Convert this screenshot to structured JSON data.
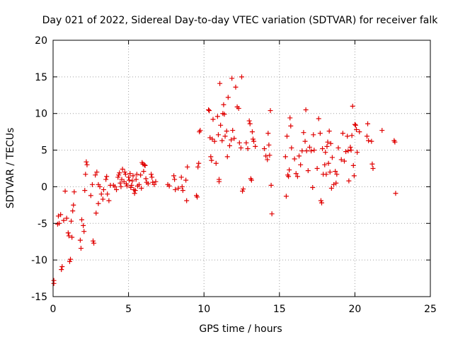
{
  "chart_data": {
    "type": "scatter",
    "title": "Day 021 of 2022, Sidereal Day-to-day VTEC variation (SDTVAR) for receiver falk",
    "xlabel": "GPS time / hours",
    "ylabel": "SDTVAR / TECUs",
    "xlim": [
      0,
      25
    ],
    "ylim": [
      -15,
      20
    ],
    "xticks": [
      0,
      5,
      10,
      15,
      20,
      25
    ],
    "yticks": [
      -15,
      -10,
      -5,
      0,
      5,
      10,
      15,
      20
    ],
    "grid": true,
    "marker": "plus",
    "color": "#e00000",
    "series": [
      {
        "name": "SDTVAR",
        "points": [
          [
            0.05,
            -12.8
          ],
          [
            0.05,
            -13.2
          ],
          [
            0.3,
            -5.1
          ],
          [
            0.35,
            -4.0
          ],
          [
            0.4,
            -5.0
          ],
          [
            0.5,
            -3.8
          ],
          [
            0.55,
            -11.3
          ],
          [
            0.6,
            -10.9
          ],
          [
            0.7,
            -4.6
          ],
          [
            0.8,
            -0.6
          ],
          [
            0.9,
            -4.3
          ],
          [
            1.0,
            -6.3
          ],
          [
            1.05,
            -6.7
          ],
          [
            1.1,
            -10.2
          ],
          [
            1.15,
            -9.9
          ],
          [
            1.2,
            -4.7
          ],
          [
            1.25,
            -6.9
          ],
          [
            1.3,
            -3.3
          ],
          [
            1.35,
            -2.5
          ],
          [
            1.4,
            -0.7
          ],
          [
            1.8,
            -7.3
          ],
          [
            1.85,
            -8.4
          ],
          [
            1.9,
            -4.5
          ],
          [
            2.0,
            -5.3
          ],
          [
            2.05,
            -6.1
          ],
          [
            2.1,
            -0.5
          ],
          [
            2.15,
            1.7
          ],
          [
            2.2,
            3.4
          ],
          [
            2.25,
            3.0
          ],
          [
            2.5,
            -1.2
          ],
          [
            2.6,
            0.3
          ],
          [
            2.65,
            -7.4
          ],
          [
            2.7,
            -7.7
          ],
          [
            2.8,
            1.6
          ],
          [
            2.85,
            -3.6
          ],
          [
            2.9,
            2.0
          ],
          [
            3.0,
            -2.3
          ],
          [
            3.0,
            0.3
          ],
          [
            3.1,
            0.0
          ],
          [
            3.2,
            -1.0
          ],
          [
            3.3,
            -1.7
          ],
          [
            3.35,
            -0.4
          ],
          [
            3.5,
            1.0
          ],
          [
            3.55,
            1.4
          ],
          [
            3.6,
            -1.0
          ],
          [
            3.7,
            -1.9
          ],
          [
            3.8,
            0.2
          ],
          [
            4.0,
            0.2
          ],
          [
            4.1,
            0.0
          ],
          [
            4.2,
            -0.4
          ],
          [
            4.3,
            1.3
          ],
          [
            4.35,
            1.6
          ],
          [
            4.4,
            1.9
          ],
          [
            4.45,
            0.5
          ],
          [
            4.5,
            0.0
          ],
          [
            4.55,
            1.0
          ],
          [
            4.6,
            2.4
          ],
          [
            4.7,
            0.7
          ],
          [
            4.75,
            2.0
          ],
          [
            4.8,
            1.7
          ],
          [
            4.85,
            0.4
          ],
          [
            4.9,
            0.1
          ],
          [
            5.0,
            1.3
          ],
          [
            5.05,
            0.9
          ],
          [
            5.1,
            1.8
          ],
          [
            5.15,
            -0.1
          ],
          [
            5.2,
            0.2
          ],
          [
            5.25,
            0.8
          ],
          [
            5.3,
            1.5
          ],
          [
            5.35,
            -0.4
          ],
          [
            5.4,
            -0.9
          ],
          [
            5.45,
            -0.5
          ],
          [
            5.5,
            1.0
          ],
          [
            5.55,
            1.7
          ],
          [
            5.6,
            0.1
          ],
          [
            5.7,
            0.3
          ],
          [
            5.8,
            1.6
          ],
          [
            5.85,
            -0.2
          ],
          [
            5.9,
            3.3
          ],
          [
            5.95,
            3.1
          ],
          [
            6.0,
            2.1
          ],
          [
            6.05,
            3.0
          ],
          [
            6.1,
            2.9
          ],
          [
            6.15,
            1.1
          ],
          [
            6.2,
            0.6
          ],
          [
            6.3,
            0.4
          ],
          [
            6.5,
            1.7
          ],
          [
            6.55,
            1.3
          ],
          [
            6.6,
            0.6
          ],
          [
            6.7,
            0.3
          ],
          [
            6.8,
            0.7
          ],
          [
            7.6,
            0.3
          ],
          [
            7.7,
            0.1
          ],
          [
            8.0,
            1.5
          ],
          [
            8.05,
            1.0
          ],
          [
            8.1,
            -0.4
          ],
          [
            8.3,
            -0.2
          ],
          [
            8.5,
            1.3
          ],
          [
            8.55,
            0.0
          ],
          [
            8.6,
            -0.5
          ],
          [
            8.8,
            0.9
          ],
          [
            8.85,
            -1.9
          ],
          [
            8.9,
            2.7
          ],
          [
            9.5,
            -1.2
          ],
          [
            9.55,
            -1.4
          ],
          [
            9.6,
            2.7
          ],
          [
            9.65,
            3.2
          ],
          [
            9.7,
            7.5
          ],
          [
            9.75,
            7.7
          ],
          [
            10.3,
            10.5
          ],
          [
            10.35,
            10.4
          ],
          [
            10.4,
            6.7
          ],
          [
            10.45,
            4.1
          ],
          [
            10.5,
            3.6
          ],
          [
            10.55,
            6.5
          ],
          [
            10.6,
            9.2
          ],
          [
            10.7,
            6.2
          ],
          [
            10.8,
            3.2
          ],
          [
            10.9,
            9.6
          ],
          [
            10.95,
            7.1
          ],
          [
            11.0,
            1.0
          ],
          [
            11.0,
            0.7
          ],
          [
            11.05,
            14.1
          ],
          [
            11.1,
            8.4
          ],
          [
            11.2,
            6.3
          ],
          [
            11.25,
            10.0
          ],
          [
            11.3,
            11.2
          ],
          [
            11.35,
            9.9
          ],
          [
            11.4,
            6.9
          ],
          [
            11.5,
            7.6
          ],
          [
            11.55,
            4.1
          ],
          [
            11.6,
            12.2
          ],
          [
            11.7,
            5.6
          ],
          [
            11.8,
            6.4
          ],
          [
            11.85,
            14.8
          ],
          [
            11.9,
            7.7
          ],
          [
            12.0,
            6.6
          ],
          [
            12.1,
            13.6
          ],
          [
            12.2,
            10.9
          ],
          [
            12.3,
            10.7
          ],
          [
            12.35,
            6.0
          ],
          [
            12.45,
            5.3
          ],
          [
            12.5,
            15.0
          ],
          [
            12.55,
            -0.6
          ],
          [
            12.6,
            -0.3
          ],
          [
            12.8,
            6.0
          ],
          [
            12.9,
            5.2
          ],
          [
            13.0,
            9.0
          ],
          [
            13.05,
            8.6
          ],
          [
            13.1,
            1.1
          ],
          [
            13.15,
            0.9
          ],
          [
            13.2,
            7.5
          ],
          [
            13.25,
            6.5
          ],
          [
            13.3,
            6.2
          ],
          [
            13.4,
            5.5
          ],
          [
            14.0,
            5.2
          ],
          [
            14.1,
            4.2
          ],
          [
            14.2,
            3.7
          ],
          [
            14.25,
            7.3
          ],
          [
            14.3,
            5.7
          ],
          [
            14.35,
            4.3
          ],
          [
            14.4,
            10.4
          ],
          [
            14.45,
            0.2
          ],
          [
            14.5,
            -3.7
          ],
          [
            15.4,
            4.1
          ],
          [
            15.45,
            -1.3
          ],
          [
            15.5,
            6.9
          ],
          [
            15.55,
            1.6
          ],
          [
            15.6,
            1.4
          ],
          [
            15.65,
            2.3
          ],
          [
            15.7,
            9.4
          ],
          [
            15.75,
            8.3
          ],
          [
            15.8,
            5.3
          ],
          [
            16.0,
            3.8
          ],
          [
            16.1,
            1.8
          ],
          [
            16.2,
            1.4
          ],
          [
            16.3,
            4.2
          ],
          [
            16.4,
            3.0
          ],
          [
            16.5,
            4.9
          ],
          [
            16.6,
            7.4
          ],
          [
            16.7,
            6.2
          ],
          [
            16.75,
            10.5
          ],
          [
            16.8,
            4.9
          ],
          [
            16.9,
            2.2
          ],
          [
            17.0,
            5.4
          ],
          [
            17.1,
            4.9
          ],
          [
            17.2,
            -0.1
          ],
          [
            17.25,
            7.1
          ],
          [
            17.3,
            5.0
          ],
          [
            17.5,
            2.5
          ],
          [
            17.6,
            9.3
          ],
          [
            17.7,
            7.3
          ],
          [
            17.75,
            -1.9
          ],
          [
            17.8,
            -2.2
          ],
          [
            17.85,
            5.2
          ],
          [
            17.9,
            1.7
          ],
          [
            18.0,
            3.0
          ],
          [
            18.05,
            4.7
          ],
          [
            18.1,
            1.7
          ],
          [
            18.15,
            5.5
          ],
          [
            18.2,
            6.1
          ],
          [
            18.25,
            3.2
          ],
          [
            18.3,
            7.6
          ],
          [
            18.35,
            2.0
          ],
          [
            18.4,
            5.9
          ],
          [
            18.45,
            -0.2
          ],
          [
            18.5,
            4.0
          ],
          [
            18.6,
            0.3
          ],
          [
            18.7,
            2.1
          ],
          [
            18.75,
            0.5
          ],
          [
            18.8,
            1.7
          ],
          [
            18.9,
            5.3
          ],
          [
            19.1,
            3.7
          ],
          [
            19.2,
            7.3
          ],
          [
            19.3,
            3.5
          ],
          [
            19.4,
            4.8
          ],
          [
            19.5,
            6.9
          ],
          [
            19.55,
            4.9
          ],
          [
            19.6,
            0.8
          ],
          [
            19.7,
            5.4
          ],
          [
            19.75,
            5.0
          ],
          [
            19.8,
            7.0
          ],
          [
            19.85,
            11.0
          ],
          [
            19.9,
            2.9
          ],
          [
            19.95,
            1.5
          ],
          [
            20.0,
            8.5
          ],
          [
            20.05,
            8.4
          ],
          [
            20.1,
            7.8
          ],
          [
            20.15,
            4.7
          ],
          [
            20.3,
            7.5
          ],
          [
            20.8,
            6.9
          ],
          [
            20.85,
            8.6
          ],
          [
            20.9,
            6.3
          ],
          [
            21.1,
            6.2
          ],
          [
            21.15,
            3.1
          ],
          [
            21.2,
            2.5
          ],
          [
            21.8,
            7.7
          ],
          [
            22.6,
            6.3
          ],
          [
            22.65,
            6.1
          ],
          [
            22.7,
            -0.9
          ]
        ]
      }
    ]
  }
}
